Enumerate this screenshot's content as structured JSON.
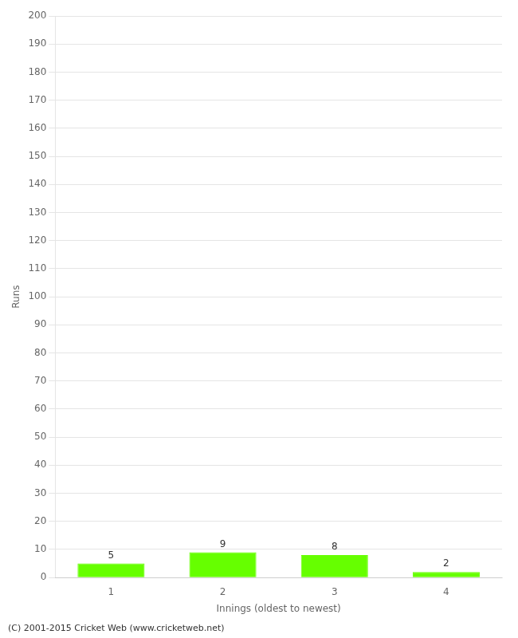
{
  "chart_data": {
    "type": "bar",
    "categories": [
      "1",
      "2",
      "3",
      "4"
    ],
    "values": [
      5,
      9,
      8,
      2
    ],
    "color": "#66ff00",
    "x_label": "Innings (oldest to newest)",
    "y_label": "Runs",
    "ylim": [
      0,
      200
    ],
    "yticks": [
      0,
      10,
      20,
      30,
      40,
      50,
      60,
      70,
      80,
      90,
      100,
      110,
      120,
      130,
      140,
      150,
      160,
      170,
      180,
      190,
      200
    ],
    "grid": true,
    "data_labels": true,
    "annotations": [
      "(C) 2001-2015 Cricket Web (www.cricketweb.net)"
    ]
  }
}
